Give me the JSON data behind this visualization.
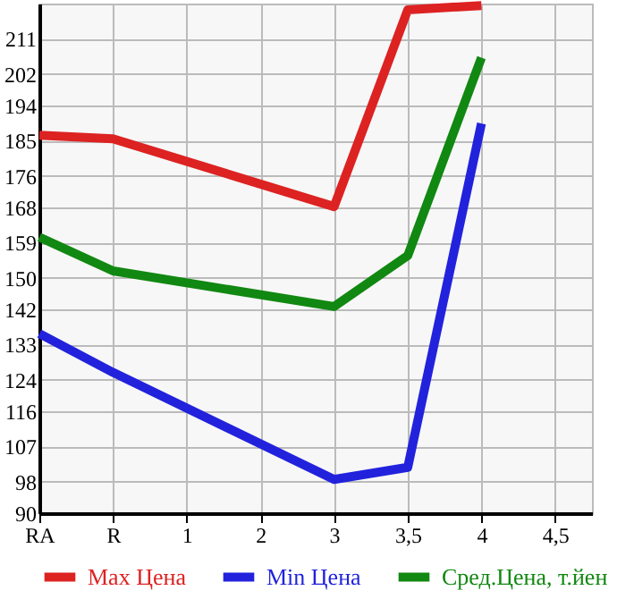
{
  "chart_data": {
    "type": "line",
    "categories": [
      "RA",
      "R",
      "1",
      "2",
      "3",
      "3,5",
      "4",
      "4,5"
    ],
    "series": [
      {
        "name": "Max Цена",
        "color": "#dd2222",
        "values": [
          186.4,
          185.5,
          null,
          null,
          168.2,
          218.4,
          219.5,
          null
        ]
      },
      {
        "name": "Min Цена",
        "color": "#2222dd",
        "values": [
          135.8,
          125.9,
          null,
          null,
          98.6,
          101.7,
          189.4,
          null
        ]
      },
      {
        "name": "Сред.Цена, т.йен",
        "color": "#118811",
        "values": [
          160.4,
          151.8,
          null,
          null,
          142.7,
          155.7,
          206.2,
          null
        ]
      }
    ],
    "ylim": [
      90,
      220
    ],
    "yticks": [
      90,
      98,
      107,
      116,
      124,
      133,
      142,
      150,
      159,
      168,
      176,
      185,
      194,
      202,
      211
    ],
    "grid": true,
    "legend": "bottom",
    "line_style": "solid",
    "marker": "none"
  }
}
